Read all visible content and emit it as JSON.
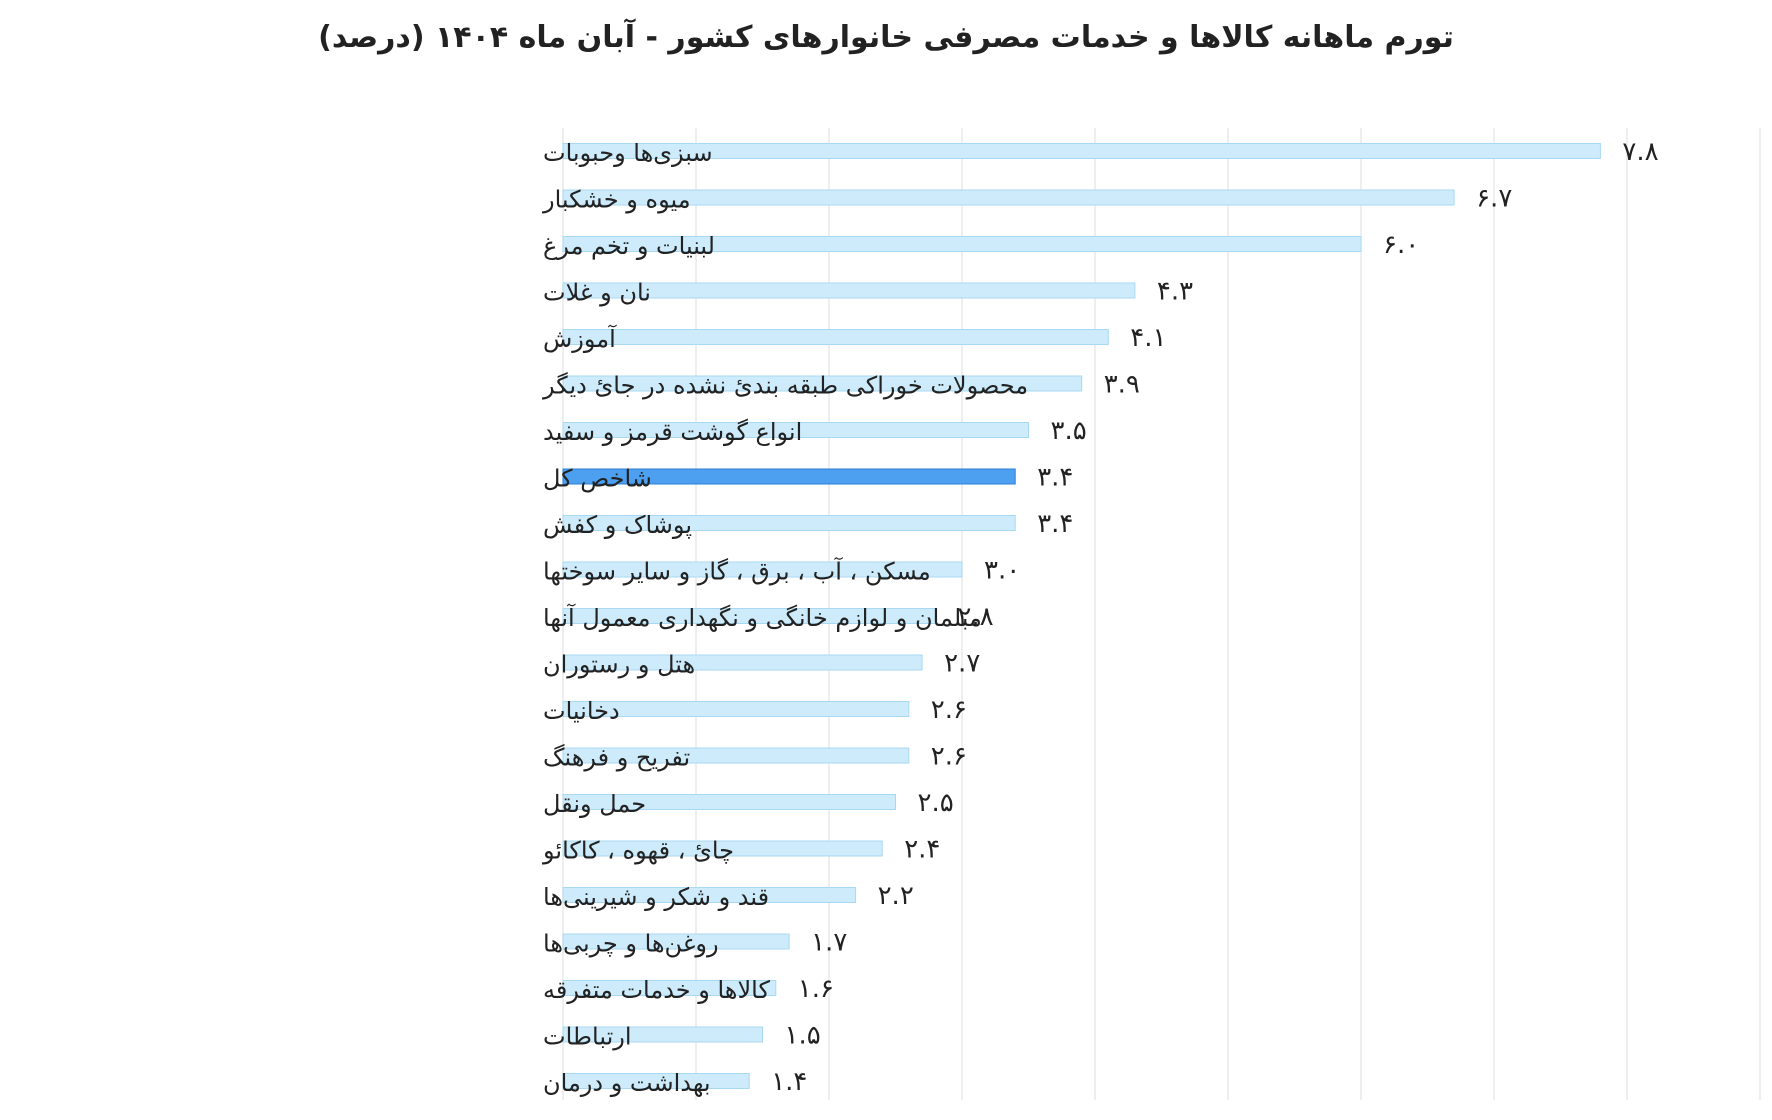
{
  "chart_data": {
    "type": "bar",
    "orientation": "horizontal",
    "title": "تورم ماهانه کالاها و خدمات مصرفی خانوارهای کشور - آبان ماه ۱۴۰۴ (درصد)",
    "xlabel": "",
    "ylabel": "",
    "xlim": [
      0,
      9
    ],
    "grid": true,
    "legend": "none",
    "categories": [
      "سبزی‌ها وحبوبات",
      "میوه و خشکبار",
      "لبنیات و تخم مرغ",
      "نان و غلات",
      "آموزش",
      "محصولات خوراکی طبقه بندیٔ نشده در جایٔ دیگر",
      "انواع گوشت قرمز و سفید",
      "شاخص کل",
      "پوشاک و کفش",
      "مسکن ، آب ، برق ، گاز و سایر سوختها",
      "مبلمان و لوازم خانگی و نگهداری معمول آنها",
      "هتل و رستوران",
      "دخانیات",
      "تفریح و فرهنگ",
      "حمل ونقل",
      "چایٔ ، قهوه ، کاکائو",
      "قند و شکر و شیرینی‌ها",
      "روغن‌ها و چربی‌ها",
      "کالاها و خدمات متفرقه",
      "ارتباطات",
      "بهداشت و درمان"
    ],
    "values": [
      7.8,
      6.7,
      6.0,
      4.3,
      4.1,
      3.9,
      3.5,
      3.4,
      3.4,
      3.0,
      2.8,
      2.7,
      2.6,
      2.6,
      2.5,
      2.4,
      2.2,
      1.7,
      1.6,
      1.5,
      1.4
    ],
    "value_labels": [
      "۷.۸",
      "۶.۷",
      "۶.۰",
      "۴.۳",
      "۴.۱",
      "۳.۹",
      "۳.۵",
      "۳.۴",
      "۳.۴",
      "۳.۰",
      "۲.۸",
      "۲.۷",
      "۲.۶",
      "۲.۶",
      "۲.۵",
      "۲.۴",
      "۲.۲",
      "۱.۷",
      "۱.۶",
      "۱.۵",
      "۱.۴"
    ],
    "highlight_category": "شاخص کل",
    "colors": {
      "bar": "#cdebfa",
      "bar_stroke": "#a9d8f2",
      "highlight": "#4d9ff0",
      "highlight_stroke": "#2a7fd6",
      "grid": "#e3e3e3",
      "text": "#222222"
    }
  }
}
